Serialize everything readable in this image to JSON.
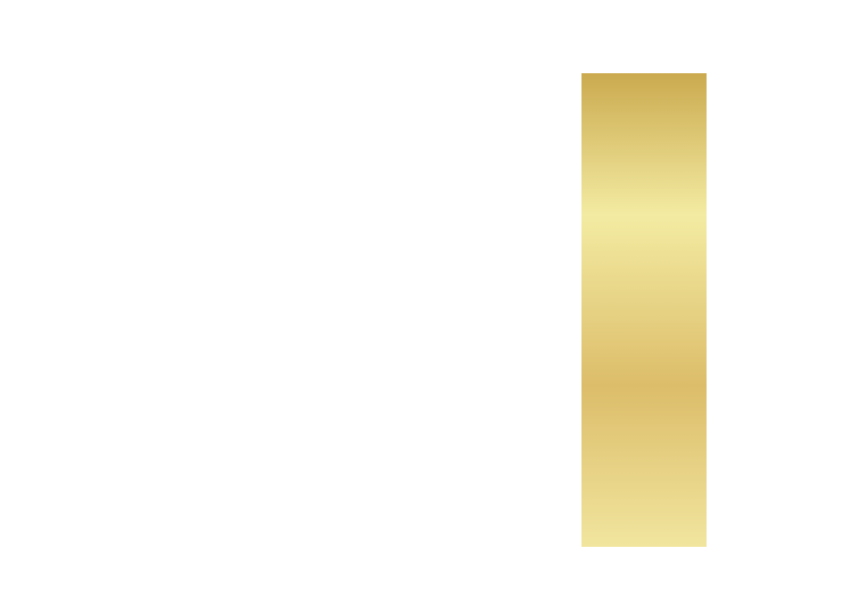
{
  "canvas": {
    "background": "#ffffff"
  },
  "gold_bar": {
    "gradient_stops": [
      {
        "offset": 0.0,
        "color": "#cbaa4f"
      },
      {
        "offset": 0.3,
        "color": "#f3eba2"
      },
      {
        "offset": 0.66,
        "color": "#dcbd6a"
      },
      {
        "offset": 1.0,
        "color": "#f1e59e"
      }
    ]
  }
}
